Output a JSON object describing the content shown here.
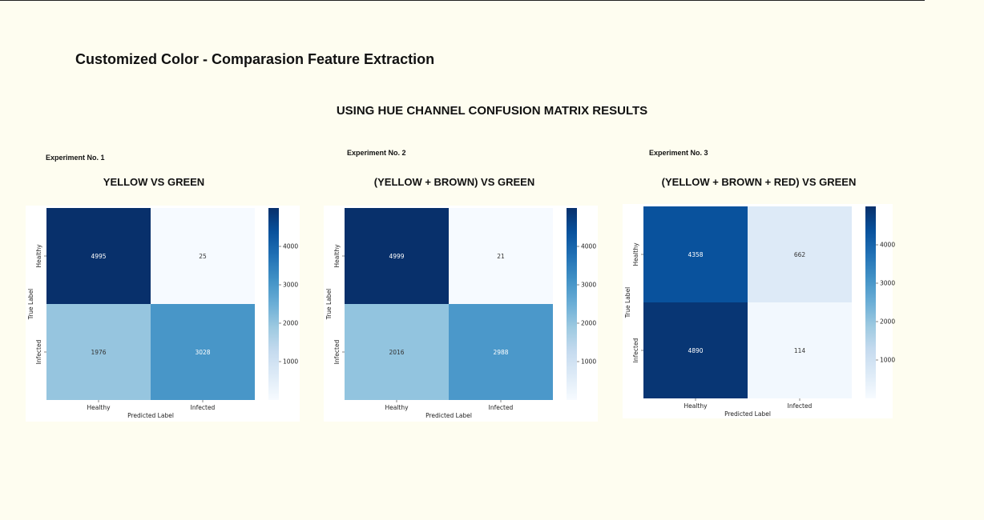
{
  "page": {
    "title": "Customized Color - Comparasion Feature Extraction",
    "subtitle": "USING HUE CHANNEL CONFUSION MATRIX RESULTS"
  },
  "experiments": [
    {
      "label": "Experiment No. 1",
      "heading": "YELLOW   VS  GREEN"
    },
    {
      "label": "Experiment No. 2",
      "heading": "(YELLOW + BROWN)  VS  GREEN"
    },
    {
      "label": "Experiment No. 3",
      "heading": "(YELLOW + BROWN + RED)  VS  GREEN"
    }
  ],
  "chart_data": [
    {
      "type": "heatmap",
      "xlabel": "Predicted Label",
      "ylabel": "True Label",
      "x_categories": [
        "Healthy",
        "Infected"
      ],
      "y_categories": [
        "Healthy",
        "Infected"
      ],
      "values": [
        [
          4995,
          25
        ],
        [
          1976,
          3028
        ]
      ],
      "colorbar_ticks": [
        1000,
        2000,
        3000,
        4000
      ],
      "colorscale": "Blues"
    },
    {
      "type": "heatmap",
      "xlabel": "Predicted Label",
      "ylabel": "True Label",
      "x_categories": [
        "Healthy",
        "Infected"
      ],
      "y_categories": [
        "Healthy",
        "Infected"
      ],
      "values": [
        [
          4999,
          21
        ],
        [
          2016,
          2988
        ]
      ],
      "colorbar_ticks": [
        1000,
        2000,
        3000,
        4000
      ],
      "colorscale": "Blues"
    },
    {
      "type": "heatmap",
      "xlabel": "Predicted Label",
      "ylabel": "True Label",
      "x_categories": [
        "Healthy",
        "Infected"
      ],
      "y_categories": [
        "Healthy",
        "Infected"
      ],
      "values": [
        [
          4358,
          662
        ],
        [
          4890,
          114
        ]
      ],
      "colorbar_ticks": [
        1000,
        2000,
        3000,
        4000
      ],
      "colorscale": "Blues"
    }
  ]
}
